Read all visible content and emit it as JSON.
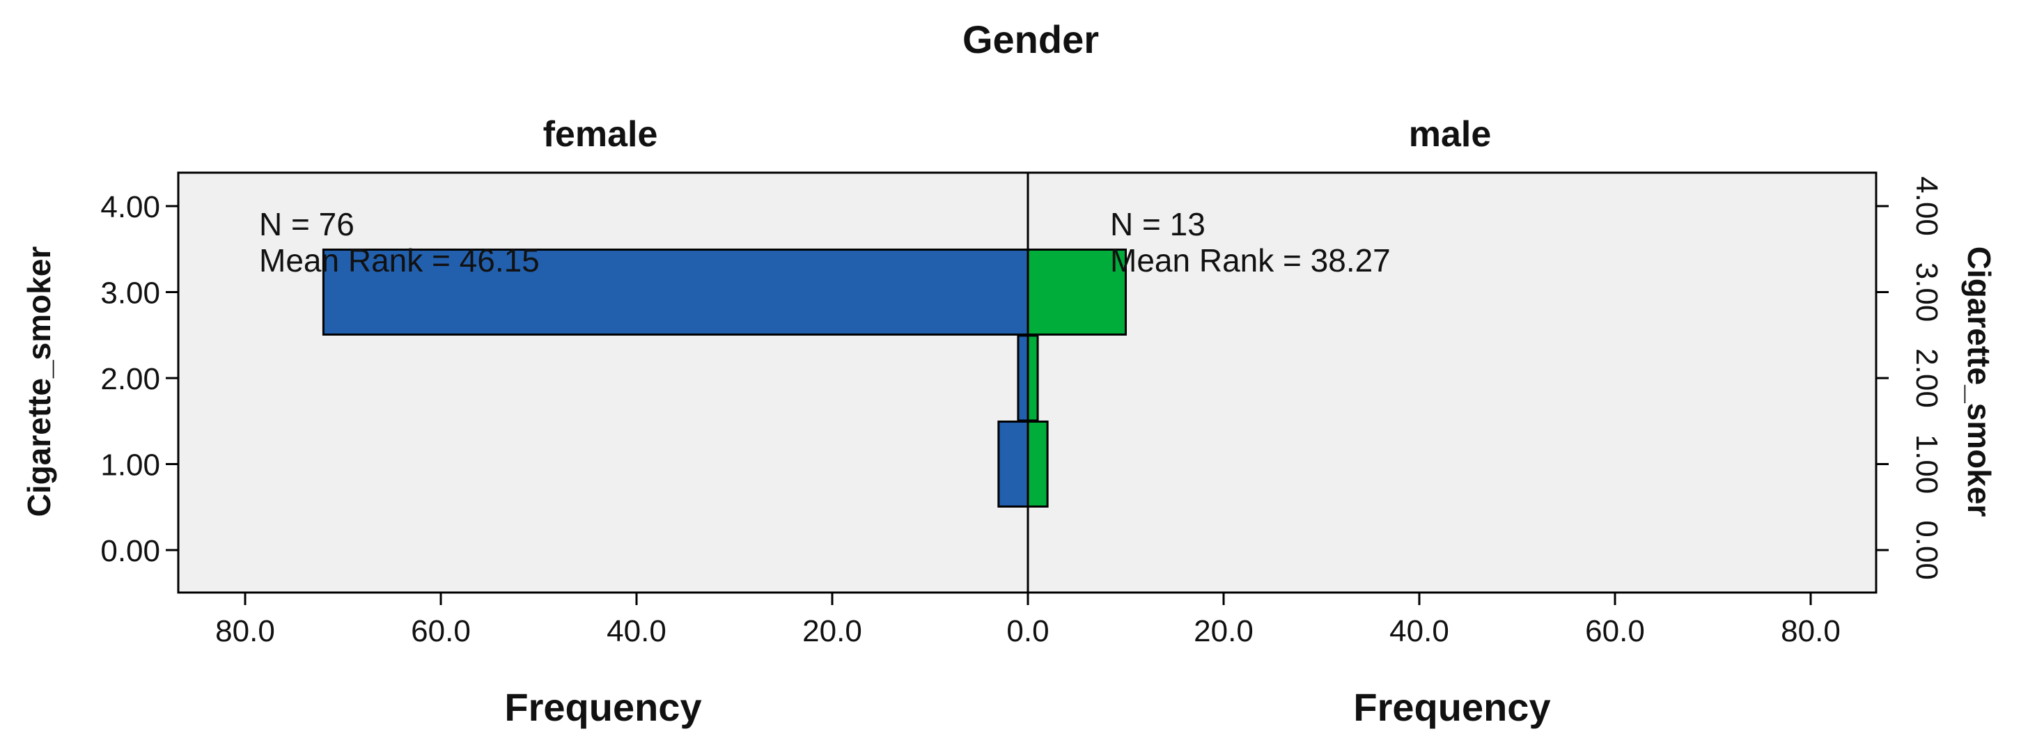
{
  "chart_data": {
    "type": "bar",
    "orientation": "horizontal",
    "layout": "population-pyramid",
    "title": "Gender",
    "panels": [
      {
        "name": "female",
        "direction": "left",
        "color": "#2260ae",
        "n_label": "N = 76",
        "mean_rank_label": "Mean Rank = 46.15",
        "bars": [
          {
            "y": 3,
            "value": 72
          },
          {
            "y": 2,
            "value": 1
          },
          {
            "y": 1,
            "value": 3
          }
        ]
      },
      {
        "name": "male",
        "direction": "right",
        "color": "#00ad3b",
        "n_label": "N = 13",
        "mean_rank_label": "Mean Rank = 38.27",
        "bars": [
          {
            "y": 3,
            "value": 10
          },
          {
            "y": 2,
            "value": 1
          },
          {
            "y": 1,
            "value": 2
          }
        ]
      }
    ],
    "ylabel_left": "Cigarette_smoker",
    "ylabel_right": "Cigarette_smoker",
    "xlabel_left": "Frequency",
    "xlabel_right": "Frequency",
    "y_ticks": [
      "0.00",
      "1.00",
      "2.00",
      "3.00",
      "4.00"
    ],
    "y_range": [
      -0.5,
      4.5
    ],
    "x_ticks_left": [
      "80.0",
      "60.0",
      "40.0",
      "20.0",
      "0.0"
    ],
    "x_ticks_right": [
      "20.0",
      "40.0",
      "60.0",
      "80.0"
    ],
    "x_range": [
      0,
      87
    ],
    "plot_background": "#f0f0f0",
    "grid": false
  }
}
